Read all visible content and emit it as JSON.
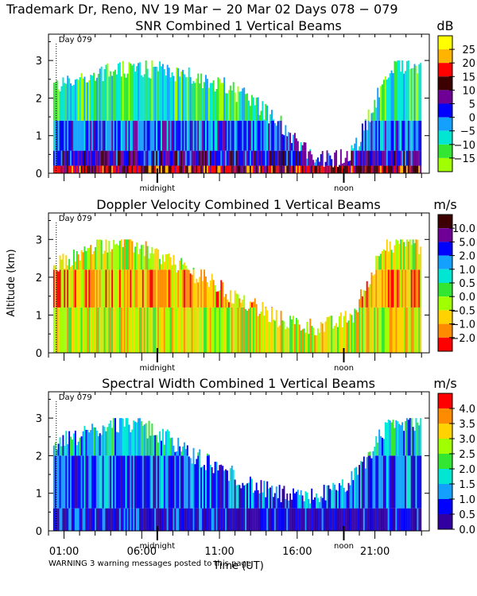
{
  "header": {
    "location_dates": "Trademark Dr, Reno, NV  19 Mar − 20 Mar 02 Days 078 − 079"
  },
  "common": {
    "ylabel": "Altitude (km)",
    "xlabel": "Time (UT)",
    "x_tick_labels": [
      "01:00",
      "06:00",
      "11:00",
      "16:00",
      "21:00"
    ],
    "midnight_label": "midnight",
    "noon_label": "noon",
    "day_label": "Day 079",
    "warning": "WARNING  3 warning messages posted to this page"
  },
  "chart_data": [
    {
      "type": "heatmap",
      "title": "SNR Combined 1 Vertical Beams",
      "units": "dB",
      "ylim": [
        0,
        3.7
      ],
      "yticks": [
        "0",
        "1",
        "2",
        "3"
      ],
      "xlim_hours_ut": [
        0,
        24.5
      ],
      "x_ticks_hours": [
        1,
        6,
        11,
        16,
        21
      ],
      "colorbar_labels": [
        "25",
        "20",
        "15",
        "10",
        "5",
        "0",
        "−5",
        "−10",
        "−15"
      ],
      "colorbar_colors": [
        "#ffff00",
        "#ffb400",
        "#ff0000",
        "#3c0000",
        "#6e0096",
        "#0000ff",
        "#14a0ff",
        "#00e6d2",
        "#32e632",
        "#a0ff00"
      ],
      "echo_top_km": [
        2.3,
        2.4,
        2.5,
        2.6,
        2.7,
        2.75,
        2.8,
        2.75,
        2.7,
        2.6,
        2.5,
        2.4,
        2.2,
        2.0,
        1.7,
        1.4,
        1.0,
        0.6,
        0.4,
        0.4,
        0.6,
        1.5,
        2.5,
        2.9,
        2.9,
        2.8
      ],
      "layers": [
        [
          0.0,
          0.2,
          3
        ],
        [
          0.2,
          0.6,
          5
        ],
        [
          0.6,
          1.4,
          6
        ],
        [
          1.4,
          3.0,
          8
        ]
      ]
    },
    {
      "type": "heatmap",
      "title": "Doppler Velocity Combined 1 Vertical Beams",
      "units": "m/s",
      "ylim": [
        0,
        3.7
      ],
      "yticks": [
        "0",
        "1",
        "2",
        "3"
      ],
      "xlim_hours_ut": [
        0,
        24.5
      ],
      "x_ticks_hours": [
        1,
        6,
        11,
        16,
        21
      ],
      "colorbar_labels": [
        "10.0",
        "5.0",
        "2.0",
        "1.0",
        "0.5",
        "0.0",
        "−0.5",
        "−1.0",
        "−2.0"
      ],
      "colorbar_colors": [
        "#3c0000",
        "#6e0096",
        "#0000ff",
        "#14a0ff",
        "#00e6d2",
        "#32e632",
        "#a0ff00",
        "#ffd200",
        "#ff8c00",
        "#ff0000"
      ],
      "echo_top_km": [
        2.3,
        2.4,
        2.6,
        2.8,
        2.9,
        2.9,
        2.8,
        2.6,
        2.4,
        2.2,
        2.0,
        1.8,
        1.5,
        1.3,
        1.1,
        0.9,
        0.8,
        0.7,
        0.7,
        0.8,
        1.0,
        2.0,
        2.8,
        2.9,
        2.9,
        2.7
      ],
      "layers": [
        [
          0.0,
          1.2,
          7
        ],
        [
          1.2,
          2.2,
          8
        ],
        [
          2.2,
          3.0,
          7
        ]
      ]
    },
    {
      "type": "heatmap",
      "title": "Spectral Width Combined 1 Vertical Beams",
      "units": "m/s",
      "ylim": [
        0,
        3.7
      ],
      "yticks": [
        "0",
        "1",
        "2",
        "3"
      ],
      "xlim_hours_ut": [
        0,
        24.5
      ],
      "x_ticks_hours": [
        1,
        6,
        11,
        16,
        21
      ],
      "colorbar_labels": [
        "4.0",
        "3.5",
        "3.0",
        "2.5",
        "2.0",
        "1.5",
        "1.0",
        "0.5",
        "0.0"
      ],
      "colorbar_colors": [
        "#ff0000",
        "#ff8c00",
        "#ffd200",
        "#a0ff00",
        "#32e632",
        "#00e6d2",
        "#14a0ff",
        "#0000ff",
        "#3200a0"
      ],
      "echo_top_km": [
        2.3,
        2.4,
        2.5,
        2.7,
        2.8,
        2.9,
        2.8,
        2.6,
        2.4,
        2.1,
        1.9,
        1.7,
        1.5,
        1.3,
        1.1,
        1.0,
        0.9,
        0.9,
        1.0,
        1.1,
        1.4,
        2.0,
        2.7,
        2.9,
        2.9,
        2.7
      ],
      "layers": [
        [
          0.0,
          0.6,
          8
        ],
        [
          0.6,
          2.0,
          7
        ],
        [
          2.0,
          3.0,
          6
        ]
      ]
    }
  ]
}
